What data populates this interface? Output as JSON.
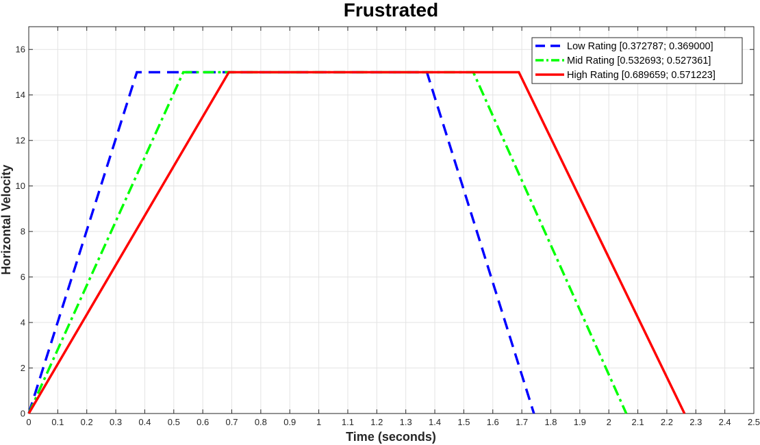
{
  "chart_data": {
    "type": "line",
    "title": "Frustrated",
    "xlabel": "Time (seconds)",
    "ylabel": "Horizontal Velocity",
    "xlim": [
      0,
      2.5
    ],
    "ylim": [
      0,
      17
    ],
    "xticks": [
      0,
      0.1,
      0.2,
      0.3,
      0.4,
      0.5,
      0.6,
      0.7,
      0.8,
      0.9,
      1,
      1.1,
      1.2,
      1.3,
      1.4,
      1.5,
      1.6,
      1.7,
      1.8,
      1.9,
      2,
      2.1,
      2.2,
      2.3,
      2.4,
      2.5
    ],
    "xtick_labels": [
      "0",
      "0.1",
      "0.2",
      "0.3",
      "0.4",
      "0.5",
      "0.6",
      "0.7",
      "0.8",
      "0.9",
      "1",
      "1.1",
      "1.2",
      "1.3",
      "1.4",
      "1.5",
      "1.6",
      "1.7",
      "1.8",
      "1.9",
      "2",
      "2.1",
      "2.2",
      "2.3",
      "2.4",
      "2.5"
    ],
    "yticks": [
      0,
      2,
      4,
      6,
      8,
      10,
      12,
      14,
      16
    ],
    "ytick_labels": [
      "0",
      "2",
      "4",
      "6",
      "8",
      "10",
      "12",
      "14",
      "16"
    ],
    "grid": true,
    "legend_position": "top-right",
    "series": [
      {
        "name": "Low Rating [0.372787; 0.369000]",
        "color": "#0000ff",
        "style": "dashed",
        "x": [
          0,
          0.3728,
          1.3728,
          1.7418
        ],
        "y": [
          0,
          15,
          15,
          0
        ]
      },
      {
        "name": "Mid Rating [0.532693; 0.527361]",
        "color": "#00ff00",
        "style": "dashdot",
        "x": [
          0,
          0.5327,
          1.5327,
          2.0601
        ],
        "y": [
          0,
          15,
          15,
          0
        ]
      },
      {
        "name": "High Rating [0.689659; 0.571223]",
        "color": "#ff0000",
        "style": "solid",
        "x": [
          0,
          0.6897,
          1.6897,
          2.2609
        ],
        "y": [
          0,
          15,
          15,
          0
        ]
      }
    ]
  }
}
